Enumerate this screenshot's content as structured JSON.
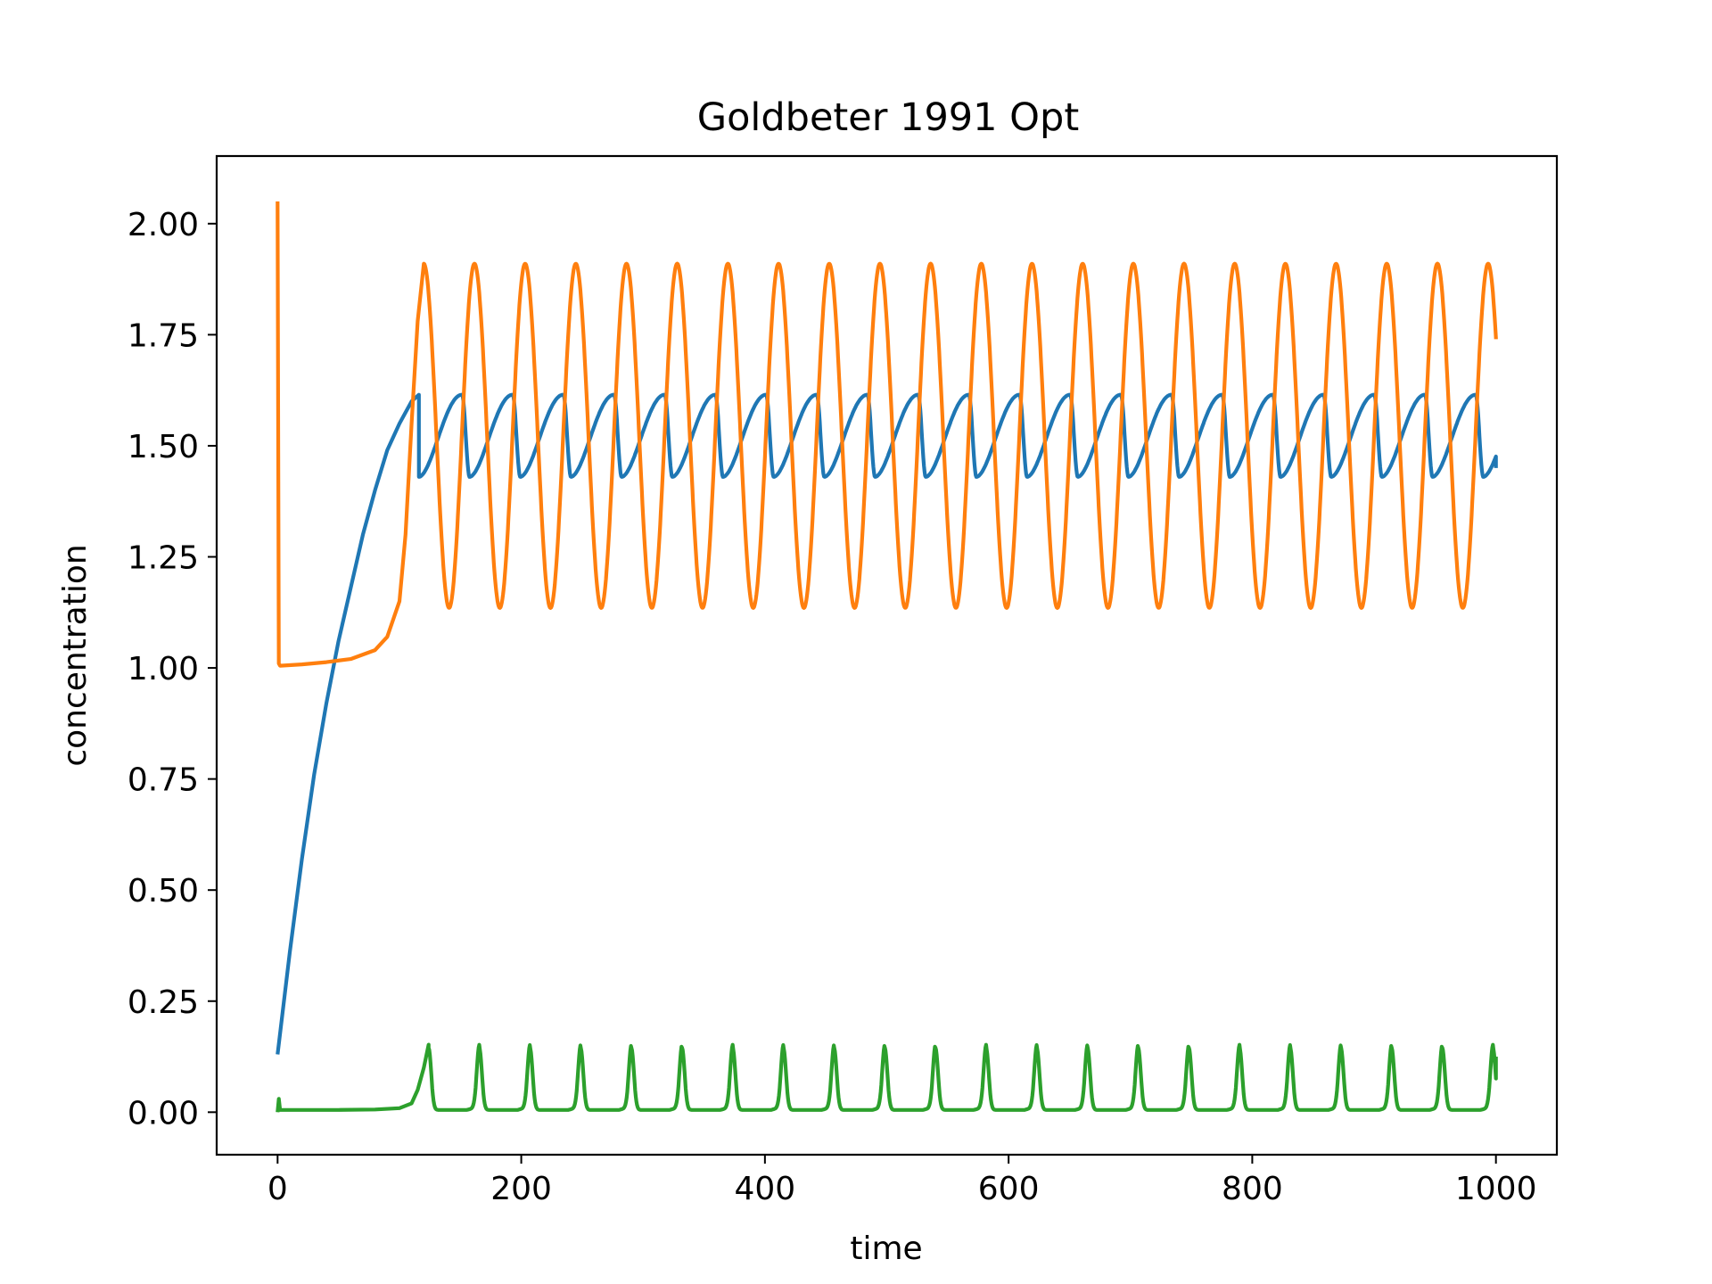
{
  "chart_data": {
    "type": "line",
    "title": "Goldbeter 1991 Opt",
    "xlabel": "time",
    "ylabel": "concentration",
    "xlim": [
      -50,
      1050
    ],
    "ylim": [
      -0.0957,
      2.1522
    ],
    "xticks": [
      0,
      200,
      400,
      600,
      800,
      1000
    ],
    "xtick_labels": [
      "0",
      "200",
      "400",
      "600",
      "800",
      "1000"
    ],
    "yticks": [
      0.0,
      0.25,
      0.5,
      0.75,
      1.0,
      1.25,
      1.5,
      1.75,
      2.0
    ],
    "ytick_labels": [
      "0.00",
      "0.25",
      "0.50",
      "0.75",
      "1.00",
      "1.25",
      "1.50",
      "1.75",
      "2.00"
    ],
    "grid": false,
    "legend": "none",
    "series": [
      {
        "color": "#1f77b4",
        "oscillation": {
          "t_onset": 116,
          "period": 41.6,
          "peak_phase": 0.93,
          "min": 1.43,
          "max": 1.615,
          "end_value": 1.45
        },
        "x": [
          0,
          10,
          20,
          30,
          40,
          50,
          60,
          70,
          80,
          90,
          100,
          110,
          116,
          1000
        ],
        "y": [
          0.13,
          0.36,
          0.57,
          0.76,
          0.92,
          1.06,
          1.18,
          1.3,
          1.4,
          1.49,
          1.55,
          1.6,
          1.615,
          1.45
        ]
      },
      {
        "color": "#ff7f0e",
        "oscillation": {
          "t_onset": 120,
          "period": 41.6,
          "peak_phase": 0.0,
          "min": 1.135,
          "max": 1.91,
          "end_value": 1.74
        },
        "x": [
          0,
          1,
          2,
          20,
          40,
          60,
          80,
          90,
          100,
          105,
          110,
          115,
          120,
          1000
        ],
        "y": [
          2.05,
          1.01,
          1.005,
          1.008,
          1.013,
          1.02,
          1.04,
          1.07,
          1.15,
          1.3,
          1.55,
          1.78,
          1.91,
          1.74
        ]
      },
      {
        "color": "#2ca02c",
        "oscillation": {
          "t_onset": 124,
          "period": 41.6,
          "peak_phase": 0.0,
          "min": 0.005,
          "max": 0.152,
          "end_value": 0.125
        },
        "x": [
          0,
          1,
          2,
          20,
          50,
          80,
          100,
          110,
          115,
          120,
          124,
          1000
        ],
        "y": [
          0.0,
          0.03,
          0.005,
          0.005,
          0.005,
          0.006,
          0.009,
          0.02,
          0.05,
          0.1,
          0.152,
          0.125
        ]
      }
    ]
  }
}
